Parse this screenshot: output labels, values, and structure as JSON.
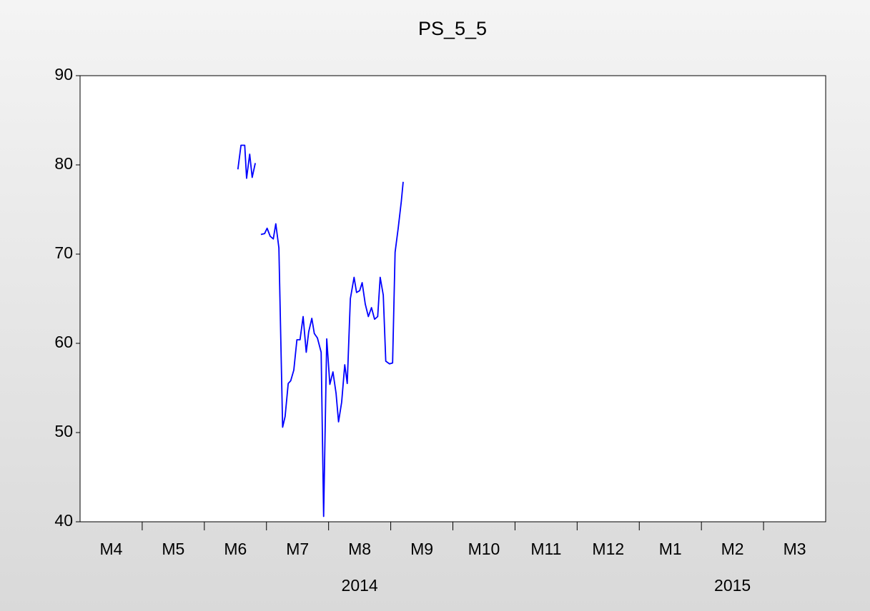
{
  "chart_data": {
    "type": "line",
    "title": "PS_5_5",
    "category_groups": [
      {
        "label": "2014",
        "categories": [
          "M4",
          "M5",
          "M6",
          "M7",
          "M8",
          "M9",
          "M10",
          "M11",
          "M12"
        ]
      },
      {
        "label": "2015",
        "categories": [
          "M1",
          "M2",
          "M3"
        ]
      }
    ],
    "xlim": [
      0,
      12
    ],
    "ylim": [
      40,
      90
    ],
    "yticks": [
      40,
      50,
      60,
      70,
      80,
      90
    ],
    "x": [
      2.54,
      2.59,
      2.65,
      2.68,
      2.73,
      2.77,
      2.82,
      2.87,
      2.91,
      2.97,
      3.01,
      3.06,
      3.11,
      3.15,
      3.2,
      3.26,
      3.3,
      3.35,
      3.39,
      3.44,
      3.49,
      3.54,
      3.59,
      3.64,
      3.68,
      3.73,
      3.77,
      3.82,
      3.88,
      3.92,
      3.97,
      4.02,
      4.07,
      4.12,
      4.16,
      4.21,
      4.26,
      4.3,
      4.35,
      4.41,
      4.45,
      4.5,
      4.54,
      4.59,
      4.64,
      4.69,
      4.74,
      4.79,
      4.83,
      4.88,
      4.92,
      4.98,
      5.03,
      5.07,
      5.12,
      5.17,
      5.2
    ],
    "series": [
      {
        "color": "#0000ff",
        "values": [
          79.5,
          82.2,
          82.2,
          78.5,
          81.2,
          78.6,
          80.2,
          null,
          72.2,
          72.3,
          72.9,
          72.0,
          71.7,
          73.4,
          70.7,
          50.6,
          51.8,
          55.5,
          55.8,
          57.0,
          60.4,
          60.4,
          63.0,
          59.0,
          61.3,
          62.8,
          61.1,
          60.6,
          59.0,
          40.6,
          60.5,
          55.4,
          56.8,
          54.4,
          51.2,
          53.4,
          57.6,
          55.5,
          65.0,
          67.4,
          65.7,
          65.9,
          66.8,
          64.4,
          63.0,
          64.0,
          62.7,
          63.0,
          67.4,
          65.4,
          58.0,
          57.7,
          57.8,
          70.2,
          72.9,
          75.9,
          78.1
        ]
      }
    ]
  }
}
